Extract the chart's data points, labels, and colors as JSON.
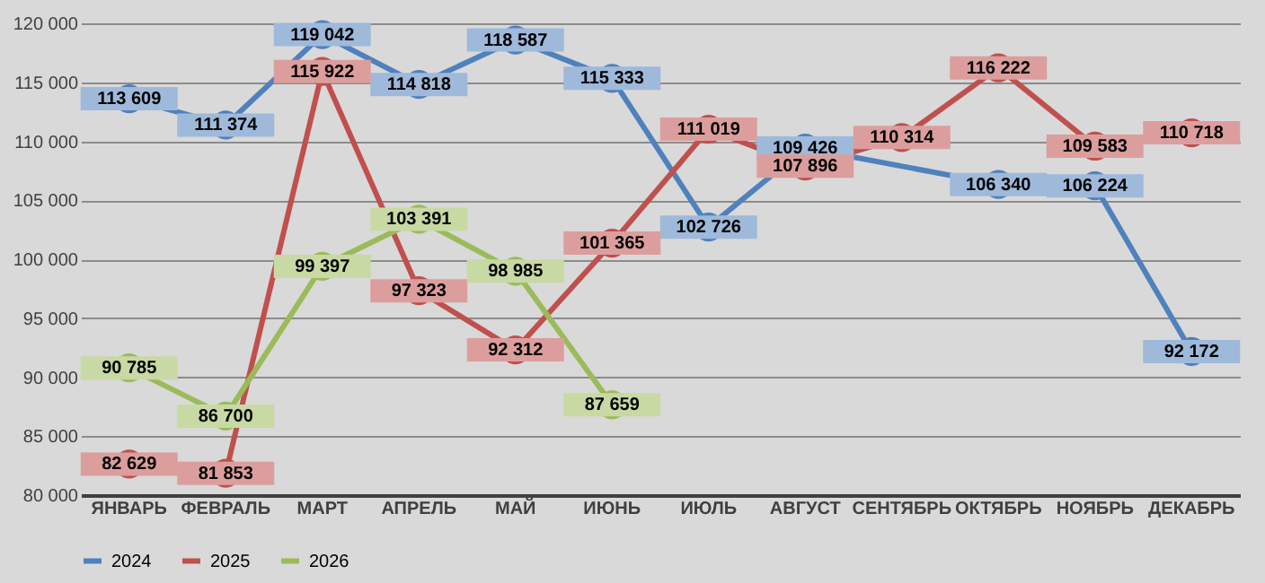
{
  "chart_data": {
    "type": "line",
    "categories": [
      "ЯНВАРЬ",
      "ФЕВРАЛЬ",
      "МАРТ",
      "АПРЕЛЬ",
      "МАЙ",
      "ИЮНЬ",
      "ИЮЛЬ",
      "АВГУСТ",
      "СЕНТЯБРЬ",
      "ОКТЯБРЬ",
      "НОЯБРЬ",
      "ДЕКАБРЬ"
    ],
    "series": [
      {
        "name": "2024",
        "color": "#4f81bd",
        "values": [
          113609,
          111374,
          119042,
          114818,
          118587,
          115333,
          102726,
          109426,
          null,
          106340,
          106224,
          92172
        ]
      },
      {
        "name": "2025",
        "color": "#c0504d",
        "values": [
          82629,
          81853,
          115922,
          97323,
          92312,
          101365,
          111019,
          107896,
          110314,
          116222,
          109583,
          110718
        ]
      },
      {
        "name": "2026",
        "color": "#9bbb59",
        "values": [
          90785,
          86700,
          99397,
          103391,
          98985,
          87659,
          null,
          null,
          null,
          null,
          null,
          null
        ]
      }
    ],
    "ylim": [
      80000,
      120000
    ],
    "yticks": [
      {
        "value": 80000,
        "label": "80 000"
      },
      {
        "value": 85000,
        "label": "85 000"
      },
      {
        "value": 90000,
        "label": "90 000"
      },
      {
        "value": 95000,
        "label": "95 000"
      },
      {
        "value": 100000,
        "label": "100 000"
      },
      {
        "value": 105000,
        "label": "105 000"
      },
      {
        "value": 110000,
        "label": "110 000"
      },
      {
        "value": 115000,
        "label": "115 000"
      },
      {
        "value": 120000,
        "label": "120 000"
      }
    ],
    "grid": "y",
    "legend": "bottom",
    "marker": "circle",
    "line_style": "solid",
    "data_labels": true
  }
}
